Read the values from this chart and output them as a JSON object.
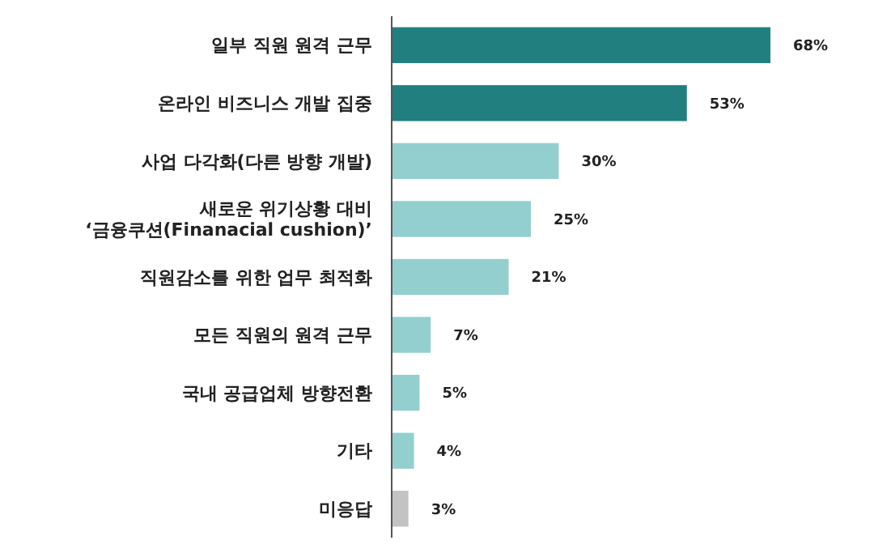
{
  "chart_data": {
    "type": "bar",
    "orientation": "horizontal",
    "categories": [
      "일부 직원 원격 근무",
      "온라인 비즈니스 개발 집중",
      "사업 다각화(다른 방향 개발)",
      "새로운 위기상황 대비\n‘금융쿠션(Finanacial cushion)’",
      "직원감소를 위한 업무 최적화",
      "모든 직원의 원격 근무",
      "국내 공급업체 방향전환",
      "기타",
      "미응답"
    ],
    "values": [
      68,
      53,
      30,
      25,
      21,
      7,
      5,
      4,
      3
    ],
    "colors": [
      "#217f80",
      "#217f80",
      "#93cfcf",
      "#93cfcf",
      "#93cfcf",
      "#93cfcf",
      "#93cfcf",
      "#93cfcf",
      "#c3c3c3"
    ],
    "value_labels": [
      "68%",
      "53%",
      "30%",
      "25%",
      "21%",
      "7%",
      "5%",
      "4%",
      "3%"
    ]
  }
}
